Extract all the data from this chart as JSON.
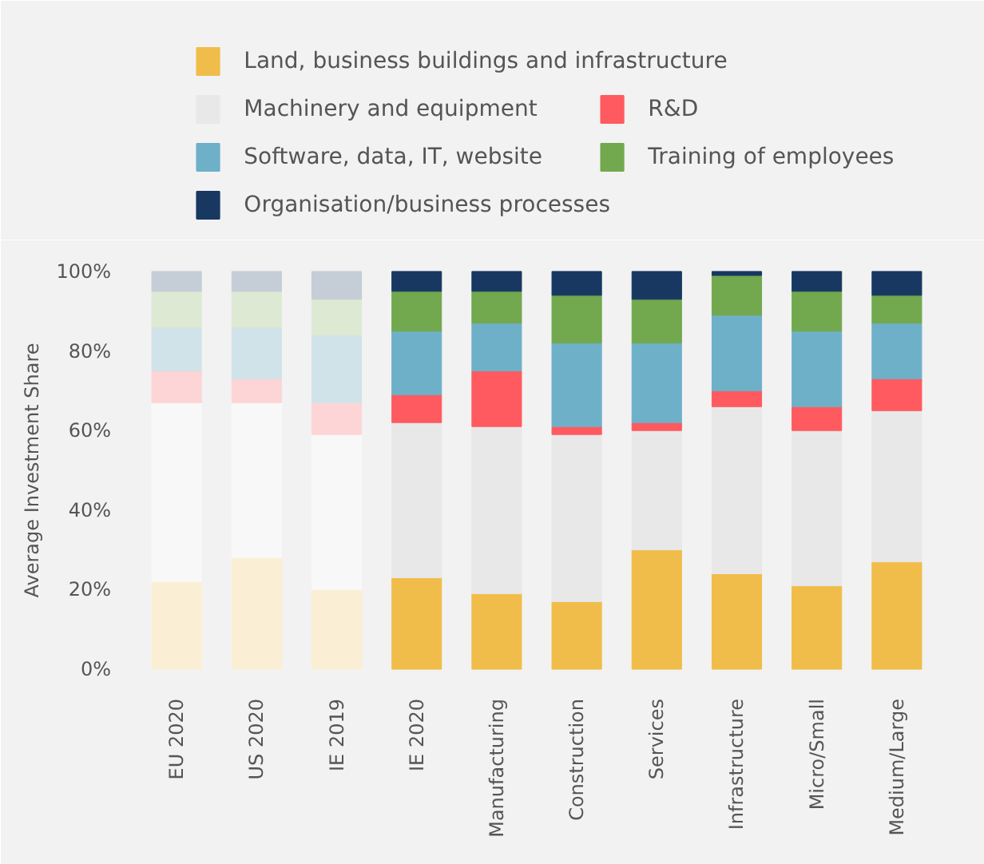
{
  "chart_data": {
    "type": "bar",
    "stacked": true,
    "ylabel": "Average Investment Share",
    "categories": [
      "EU 2020",
      "US 2020",
      "IE 2019",
      "IE 2020",
      "Manufacturing",
      "Construction",
      "Services",
      "Infrastructure",
      "Micro/Small",
      "Medium/Large"
    ],
    "ylim": [
      -3,
      103
    ],
    "yticks": [
      {
        "value": 0,
        "label": "0%"
      },
      {
        "value": 20,
        "label": "20%"
      },
      {
        "value": 40,
        "label": "40%"
      },
      {
        "value": 60,
        "label": "60%"
      },
      {
        "value": 80,
        "label": "80%"
      },
      {
        "value": 100,
        "label": "100%"
      }
    ],
    "legend": "top left",
    "grid": false,
    "series": [
      {
        "name": "Land, business buildings and infrastructure",
        "color": "#f0bd4a",
        "colors": [
          "#faefd4",
          "#faefd4",
          "#faefd4",
          "#f0bd4a",
          "#f0bd4a",
          "#f0bd4a",
          "#f0bd4a",
          "#f0bd4a",
          "#f0bd4a",
          "#f0bd4a"
        ],
        "values": [
          22,
          28,
          20,
          23,
          19,
          17,
          30,
          24,
          21,
          27
        ]
      },
      {
        "name": "Machinery and equipment",
        "color": "#e8e8e8",
        "colors": [
          "#f8f8f8",
          "#f8f8f8",
          "#f8f8f8",
          "#e8e8e8",
          "#e8e8e8",
          "#e8e8e8",
          "#e8e8e8",
          "#e8e8e8",
          "#e8e8e8",
          "#e8e8e8"
        ],
        "values": [
          45,
          39,
          39,
          39,
          42,
          42,
          30,
          42,
          39,
          38
        ]
      },
      {
        "name": "R&D",
        "color": "#ff5a5f",
        "colors": [
          "#fdd5d6",
          "#fdd5d6",
          "#fdd5d6",
          "#ff5a5f",
          "#ff5a5f",
          "#ff5a5f",
          "#ff5a5f",
          "#ff5a5f",
          "#ff5a5f",
          "#ff5a5f"
        ],
        "values": [
          8,
          6,
          8,
          7,
          14,
          2,
          2,
          4,
          6,
          8
        ]
      },
      {
        "name": "Software, data, IT, website",
        "color": "#6fb0c9",
        "colors": [
          "#d0e3e8",
          "#d0e3e8",
          "#d0e3e8",
          "#6fb0c9",
          "#6fb0c9",
          "#6fb0c9",
          "#6fb0c9",
          "#6fb0c9",
          "#6fb0c9",
          "#6fb0c9"
        ],
        "values": [
          11,
          13,
          17,
          16,
          12,
          21,
          20,
          19,
          19,
          14
        ]
      },
      {
        "name": "Training of employees",
        "color": "#72a84e",
        "colors": [
          "#dde9d3",
          "#dde9d3",
          "#dde9d3",
          "#72a84e",
          "#72a84e",
          "#72a84e",
          "#72a84e",
          "#72a84e",
          "#72a84e",
          "#72a84e"
        ],
        "values": [
          9,
          9,
          9,
          10,
          8,
          12,
          11,
          10,
          10,
          7
        ]
      },
      {
        "name": "Organisation/business processes",
        "color": "#183861",
        "colors": [
          "#c5cdd6",
          "#c5cdd6",
          "#c5cdd6",
          "#183861",
          "#183861",
          "#183861",
          "#183861",
          "#183861",
          "#183861",
          "#183861"
        ],
        "values": [
          5,
          5,
          7,
          5,
          5,
          6,
          7,
          1,
          5,
          6
        ]
      }
    ]
  }
}
